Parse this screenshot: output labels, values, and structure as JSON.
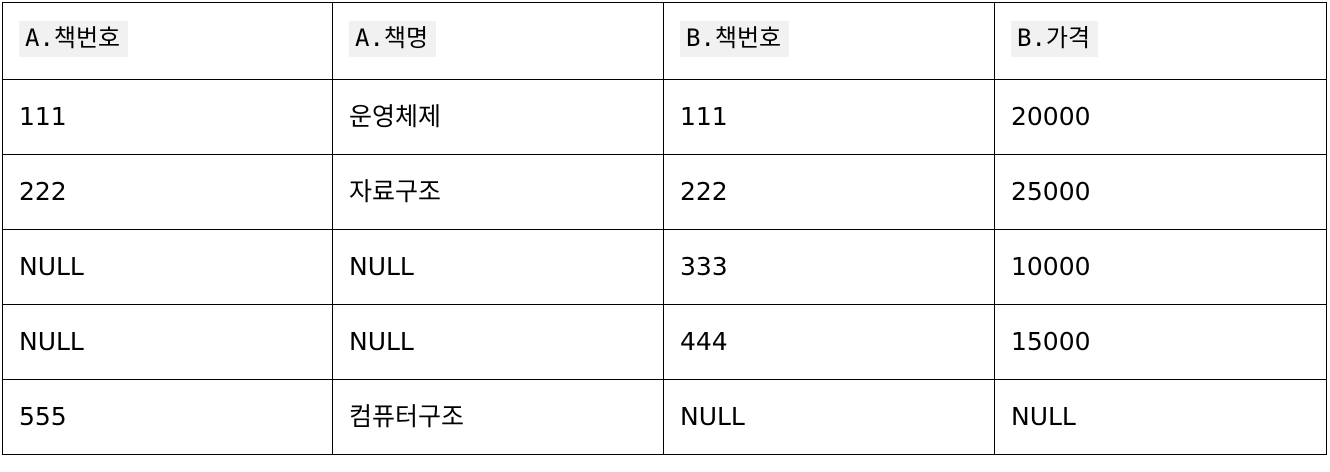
{
  "table": {
    "headers": [
      "A.책번호",
      "A.책명",
      "B.책번호",
      "B.가격"
    ],
    "rows": [
      [
        "111",
        "운영체제",
        "111",
        "20000"
      ],
      [
        "222",
        "자료구조",
        "222",
        "25000"
      ],
      [
        "NULL",
        "NULL",
        "333",
        "10000"
      ],
      [
        "NULL",
        "NULL",
        "444",
        "15000"
      ],
      [
        "555",
        "컴퓨터구조",
        "NULL",
        "NULL"
      ]
    ]
  }
}
